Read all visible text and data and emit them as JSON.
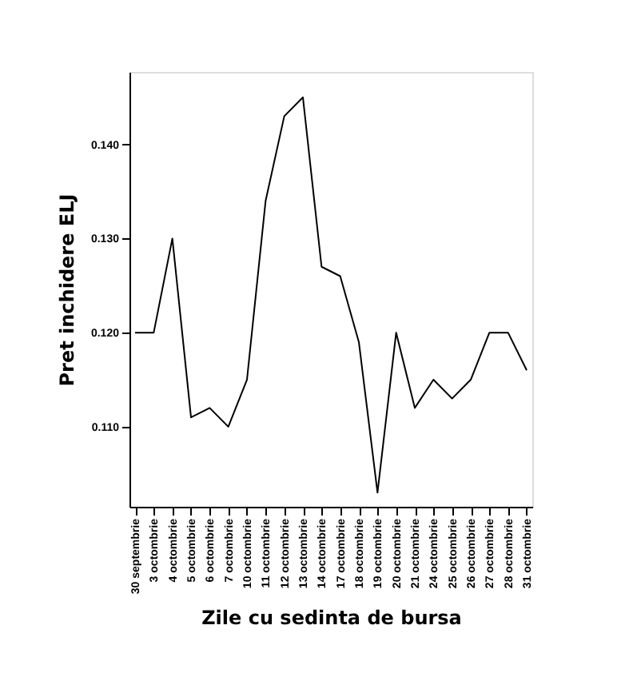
{
  "chart_data": {
    "type": "line",
    "xlabel": "Zile cu sedinta de bursa",
    "ylabel": "Pret inchidere ELJ",
    "categories": [
      "30 septembrie",
      "3 octombrie",
      "4 octombrie",
      "5 octombrie",
      "6 octombrie",
      "7 octombrie",
      "10 octombrie",
      "11 octombrie",
      "12 octombrie",
      "13 octombrie",
      "14 octombrie",
      "17 octombrie",
      "18 octombrie",
      "19 octombrie",
      "20 octombrie",
      "21 octombrie",
      "24 octombrie",
      "25 octombrie",
      "26 octombrie",
      "27 octombrie",
      "28 octombrie",
      "31 octombrie"
    ],
    "series": [
      {
        "color": "#000000",
        "values": [
          0.12,
          0.12,
          0.13,
          0.111,
          0.112,
          0.11,
          0.115,
          0.134,
          0.143,
          0.145,
          0.127,
          0.126,
          0.119,
          0.103,
          0.12,
          0.112,
          0.115,
          0.113,
          0.115,
          0.12,
          0.12,
          0.116
        ]
      }
    ],
    "ylim": [
      0.1015,
      0.1477
    ],
    "yticks": [
      {
        "value": 0.11,
        "label": "0.110"
      },
      {
        "value": 0.12,
        "label": "0.120"
      },
      {
        "value": 0.13,
        "label": "0.130"
      },
      {
        "value": 0.14,
        "label": "0.140"
      }
    ],
    "grid": false,
    "legend": false,
    "marker": "none",
    "line_style": "solid"
  }
}
